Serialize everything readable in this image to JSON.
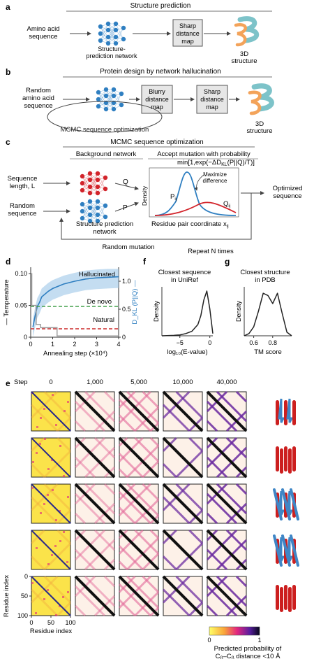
{
  "panel_a": {
    "letter": "a",
    "title": "Structure prediction",
    "input_line1": "Amino acid",
    "input_line2": "sequence",
    "net_line1": "Structure-",
    "net_line2": "prediction network",
    "box_line1": "Sharp",
    "box_line2": "distance",
    "box_line3": "map",
    "out_line1": "3D",
    "out_line2": "structure"
  },
  "panel_b": {
    "letter": "b",
    "title": "Protein design by network hallucination",
    "input_line1": "Random",
    "input_line2": "amino acid",
    "input_line3": "sequence",
    "blurry_line1": "Blurry",
    "blurry_line2": "distance",
    "blurry_line3": "map",
    "sharp_line1": "Sharp",
    "sharp_line2": "distance",
    "sharp_line3": "map",
    "loop_label": "MCMC sequence optimization",
    "out_line1": "3D",
    "out_line2": "structure"
  },
  "panel_c": {
    "letter": "c",
    "title": "MCMC sequence optimization",
    "bg_net": "Background network",
    "accept_line1": "Accept mutation with probability",
    "accept_line2": "min[1,exp(−ΔD",
    "accept_sub": "KL",
    "accept_line3": "(P||Q)/T)]",
    "seq_len1": "Sequence",
    "seq_len2": "length, L",
    "rand_seq1": "Random",
    "rand_seq2": "sequence",
    "q_label": "Q",
    "p_label": "P",
    "spn1": "Structure prediction",
    "spn2": "network",
    "maximize1": "Maximize",
    "maximize2": "difference",
    "density": "Density",
    "pij": "P",
    "qij": "Q",
    "ij": "ij",
    "xlabel": "Residue pair coordinate x",
    "opt1": "Optimized",
    "opt2": "sequence",
    "random_mutation": "Random mutation",
    "repeat": "Repeat N times"
  },
  "chart_data": [
    {
      "type": "line",
      "panel": "d",
      "xlabel": "Annealing step (×10⁴)",
      "ylabel_left": "Temperature",
      "ylabel_right": "D_KL (P||Q)",
      "x_ticks": [
        "0",
        "1",
        "2",
        "3",
        "4"
      ],
      "y_left_ticks": [
        "0",
        "0.05",
        "0.10"
      ],
      "y_right_ticks": [
        "0",
        "0.5",
        "1.0"
      ],
      "xlim": [
        0,
        4
      ],
      "ylim_left": [
        0,
        0.11
      ],
      "ylim_right": [
        0,
        1.25
      ],
      "series": [
        {
          "name": "Hallucinated",
          "color": "#2f7fc1",
          "x": [
            0.1,
            0.2,
            0.3,
            0.4,
            0.5,
            0.8,
            1.0,
            1.5,
            2.0,
            2.5,
            3.0,
            3.5,
            4.0
          ],
          "y": [
            0.18,
            0.38,
            0.55,
            0.62,
            0.72,
            0.82,
            0.87,
            0.95,
            1.0,
            1.04,
            1.06,
            1.07,
            1.08
          ]
        },
        {
          "name": "De novo",
          "color": "#44a04b",
          "style": "dashed",
          "x": [
            0,
            4
          ],
          "y": [
            0.55,
            0.55
          ]
        },
        {
          "name": "Natural",
          "color": "#cc2a2a",
          "style": "dashed",
          "x": [
            0,
            4
          ],
          "y": [
            0.15,
            0.15
          ]
        },
        {
          "name": "Temperature",
          "color": "#999999",
          "x": [
            0,
            0.05,
            0.05,
            0.25,
            0.25,
            0.45,
            0.45,
            1.2,
            1.2,
            4.0
          ],
          "y": [
            0.1,
            0.1,
            0.05,
            0.05,
            0.02,
            0.02,
            0.015,
            0.015,
            0.002,
            0.002
          ]
        }
      ]
    },
    {
      "type": "area",
      "panel": "f",
      "title_line1": "Closest sequence",
      "title_line2": "in UniRef",
      "ylabel": "Density",
      "xlabel": "log₁₀(E-value)",
      "x_ticks": [
        "−5",
        "0"
      ],
      "x": [
        -8,
        -6,
        -5,
        -4,
        -3,
        -2,
        -1.5,
        -1,
        -0.5,
        0,
        0.5
      ],
      "y": [
        0,
        0.01,
        0.02,
        0.05,
        0.1,
        0.25,
        0.45,
        0.8,
        1.0,
        0.6,
        0.05
      ]
    },
    {
      "type": "area",
      "panel": "g",
      "title_line1": "Closest structure",
      "title_line2": "in PDB",
      "ylabel": "Density",
      "xlabel": "TM score",
      "x_ticks": [
        "0.6",
        "0.8"
      ],
      "x": [
        0.5,
        0.55,
        0.6,
        0.65,
        0.7,
        0.75,
        0.8,
        0.85,
        0.9,
        0.95,
        1.0
      ],
      "y": [
        0,
        0.05,
        0.2,
        0.55,
        0.95,
        0.9,
        0.72,
        0.95,
        0.5,
        0.08,
        0
      ]
    },
    {
      "type": "heatmap",
      "panel": "e",
      "step_label": "Step",
      "columns": [
        "0",
        "1,000",
        "5,000",
        "10,000",
        "40,000"
      ],
      "rows": 5,
      "y_axis_label": "Residue index",
      "x_axis_label": "Residue index",
      "y_ticks": [
        "0",
        "50",
        "100"
      ],
      "x_ticks": [
        "0",
        "50",
        "100"
      ],
      "colorbar_ticks": [
        "0",
        "1"
      ],
      "colorbar_label_line1": "Predicted probability of",
      "colorbar_label_line2": "C",
      "colorbar_label_beta": "β",
      "colorbar_label_mid": "–C",
      "colorbar_label_end": " distance <10 Å"
    }
  ],
  "panel_labels": {
    "d": "d",
    "e": "e",
    "f": "f",
    "g": "g"
  },
  "colors": {
    "network_red": "#d2232a",
    "network_blue": "#2f7fc1",
    "box_fill": "#e6e6e6",
    "helix_red": "#cc1f1f",
    "strand_blue": "#3f86c6",
    "structure_teal": "#7dc3c9",
    "structure_orange": "#f3a35a"
  }
}
